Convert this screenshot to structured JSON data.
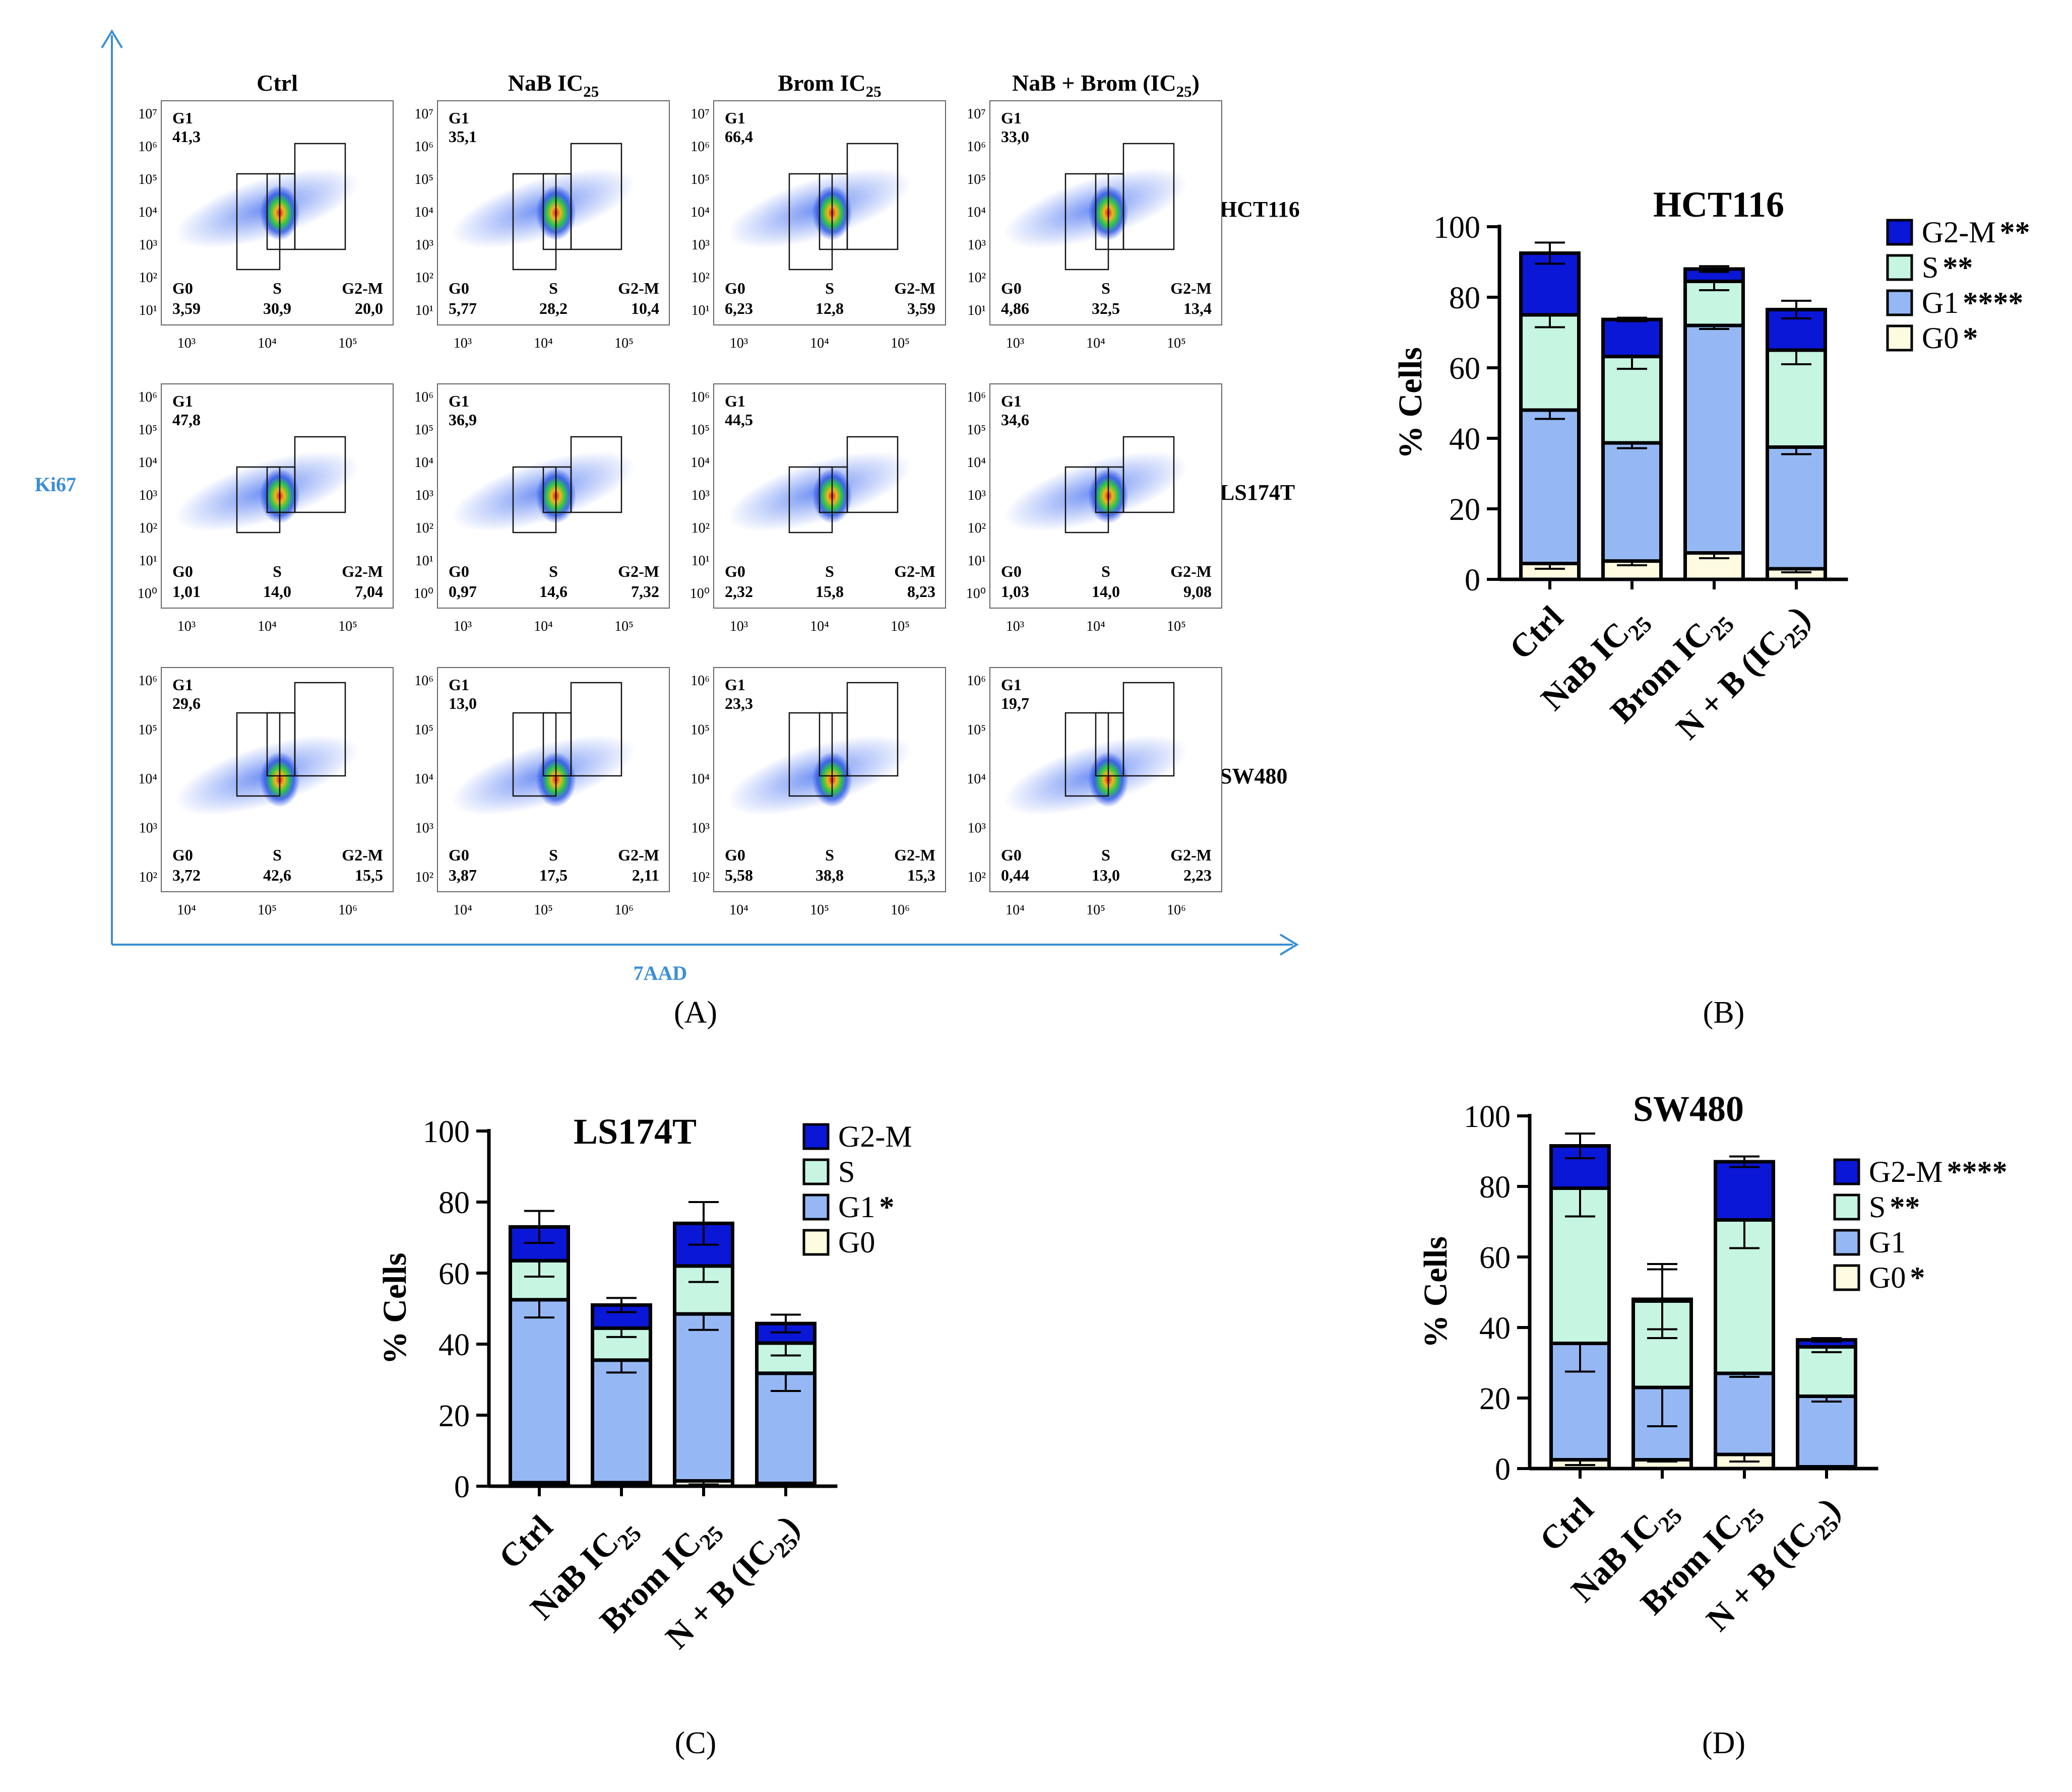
{
  "panel_a": {
    "y_axis_label": "Ki67",
    "x_axis_label": "7AAD",
    "column_headers": [
      {
        "main": "Ctrl",
        "sub": ""
      },
      {
        "main": "NaB IC",
        "sub": "25"
      },
      {
        "main": "Brom IC",
        "sub": "25"
      },
      {
        "main": "NaB + Brom (IC",
        "sub": "25",
        "tail": ")"
      }
    ],
    "gate_names": {
      "g1": "G1",
      "g0": "G0",
      "s": "S",
      "g2m": "G2-M"
    },
    "rows": [
      {
        "cell_line": "HCT116",
        "y_ticks": [
          "10⁷",
          "10⁶",
          "10⁵",
          "10⁴",
          "10³",
          "10²",
          "10¹"
        ],
        "x_ticks": [
          "10³",
          "10⁴",
          "10⁵"
        ],
        "plots": [
          {
            "g1": "41,3",
            "g0": "3,59",
            "s": "30,9",
            "g2m": "20,0"
          },
          {
            "g1": "35,1",
            "g0": "5,77",
            "s": "28,2",
            "g2m": "10,4"
          },
          {
            "g1": "66,4",
            "g0": "6,23",
            "s": "12,8",
            "g2m": "3,59"
          },
          {
            "g1": "33,0",
            "g0": "4,86",
            "s": "32,5",
            "g2m": "13,4"
          }
        ]
      },
      {
        "cell_line": "LS174T",
        "y_ticks": [
          "10⁶",
          "10⁵",
          "10⁴",
          "10³",
          "10²",
          "10¹",
          "10⁰"
        ],
        "x_ticks": [
          "10³",
          "10⁴",
          "10⁵"
        ],
        "plots": [
          {
            "g1": "47,8",
            "g0": "1,01",
            "s": "14,0",
            "g2m": "7,04"
          },
          {
            "g1": "36,9",
            "g0": "0,97",
            "s": "14,6",
            "g2m": "7,32"
          },
          {
            "g1": "44,5",
            "g0": "2,32",
            "s": "15,8",
            "g2m": "8,23"
          },
          {
            "g1": "34,6",
            "g0": "1,03",
            "s": "14,0",
            "g2m": "9,08"
          }
        ]
      },
      {
        "cell_line": "SW480",
        "y_ticks": [
          "10⁶",
          "10⁵",
          "10⁴",
          "10³",
          "10²"
        ],
        "x_ticks": [
          "10⁴",
          "10⁵",
          "10⁶"
        ],
        "plots": [
          {
            "g1": "29,6",
            "g0": "3,72",
            "s": "42,6",
            "g2m": "15,5"
          },
          {
            "g1": "13,0",
            "g0": "3,87",
            "s": "17,5",
            "g2m": "2,11"
          },
          {
            "g1": "23,3",
            "g0": "5,58",
            "s": "38,8",
            "g2m": "15,3"
          },
          {
            "g1": "19,7",
            "g0": "0,44",
            "s": "13,0",
            "g2m": "2,23"
          }
        ]
      }
    ]
  },
  "panel_labels": {
    "a": "(A)",
    "b": "(B)",
    "c": "(C)",
    "d": "(D)"
  },
  "colors": {
    "G2-M": "#0a17d6",
    "S": "#c6f5e1",
    "G1": "#95b8f5",
    "G0": "#fefbe0",
    "axis_blue": "#3a8ed6"
  },
  "chart_data": [
    {
      "type": "bar",
      "stacked": true,
      "title": "HCT116",
      "ylabel": "% Cells",
      "xlabel": "",
      "ylim": [
        0,
        100
      ],
      "yticks": [
        0,
        20,
        40,
        60,
        80,
        100
      ],
      "categories": [
        {
          "main": "Ctrl",
          "sub": "",
          "tail": ""
        },
        {
          "main": "NaB IC",
          "sub": "25",
          "tail": ""
        },
        {
          "main": "Brom IC",
          "sub": "25",
          "tail": ""
        },
        {
          "main": "N + B (IC",
          "sub": "25",
          "tail": ")"
        }
      ],
      "series": [
        {
          "name": "G0",
          "stars": "*",
          "values": [
            4.5,
            5.2,
            7.5,
            3.0
          ],
          "errors": [
            1.5,
            1.2,
            1.5,
            1.0
          ]
        },
        {
          "name": "G1",
          "stars": "****",
          "values": [
            43.5,
            33.5,
            64.5,
            34.5
          ],
          "errors": [
            2.5,
            1.5,
            1.0,
            2.0
          ]
        },
        {
          "name": "S",
          "stars": "**",
          "values": [
            27.0,
            24.5,
            12.5,
            27.5
          ],
          "errors": [
            3.5,
            3.5,
            2.5,
            4.0
          ]
        },
        {
          "name": "G2-M",
          "stars": "**",
          "values": [
            17.5,
            10.5,
            3.5,
            11.5
          ],
          "errors": [
            3.0,
            0.5,
            0.8,
            2.5
          ]
        }
      ],
      "legend": "top-right"
    },
    {
      "type": "bar",
      "stacked": true,
      "title": "LS174T",
      "ylabel": "% Cells",
      "xlabel": "",
      "ylim": [
        0,
        100
      ],
      "yticks": [
        0,
        20,
        40,
        60,
        80,
        100
      ],
      "categories": [
        {
          "main": "Ctrl",
          "sub": "",
          "tail": ""
        },
        {
          "main": "NaB IC",
          "sub": "25",
          "tail": ""
        },
        {
          "main": "Brom IC",
          "sub": "25",
          "tail": ""
        },
        {
          "main": "N + B (IC",
          "sub": "25",
          "tail": ")"
        }
      ],
      "series": [
        {
          "name": "G0",
          "stars": "",
          "values": [
            1.0,
            1.0,
            1.5,
            0.8
          ],
          "errors": [
            0.3,
            0.3,
            1.0,
            0.3
          ]
        },
        {
          "name": "G1",
          "stars": "*",
          "values": [
            51.5,
            34.5,
            47.0,
            31.0
          ],
          "errors": [
            5.0,
            3.5,
            4.5,
            5.0
          ]
        },
        {
          "name": "S",
          "stars": "",
          "values": [
            11.0,
            9.0,
            13.5,
            8.5
          ],
          "errors": [
            4.5,
            2.5,
            4.5,
            3.5
          ]
        },
        {
          "name": "G2-M",
          "stars": "",
          "values": [
            9.5,
            6.5,
            12.0,
            5.5
          ],
          "errors": [
            4.5,
            2.0,
            6.0,
            2.5
          ]
        }
      ],
      "legend": "top-right"
    },
    {
      "type": "bar",
      "stacked": true,
      "title": "SW480",
      "ylabel": "% Cells",
      "xlabel": "",
      "ylim": [
        0,
        100
      ],
      "yticks": [
        0,
        20,
        40,
        60,
        80,
        100
      ],
      "categories": [
        {
          "main": "Ctrl",
          "sub": "",
          "tail": ""
        },
        {
          "main": "NaB IC",
          "sub": "25",
          "tail": ""
        },
        {
          "main": "Brom IC",
          "sub": "25",
          "tail": ""
        },
        {
          "main": "N + B (IC",
          "sub": "25",
          "tail": ")"
        }
      ],
      "series": [
        {
          "name": "G0",
          "stars": "*",
          "values": [
            2.5,
            2.5,
            4.0,
            0.5
          ],
          "errors": [
            1.5,
            0.5,
            2.0,
            0.3
          ]
        },
        {
          "name": "G1",
          "stars": "",
          "values": [
            33.0,
            20.5,
            23.0,
            20.0
          ],
          "errors": [
            8.0,
            11.0,
            1.0,
            1.5
          ]
        },
        {
          "name": "S",
          "stars": "**",
          "values": [
            44.0,
            24.5,
            43.5,
            14.0
          ],
          "errors": [
            8.0,
            10.5,
            8.0,
            1.5
          ]
        },
        {
          "name": "G2-M",
          "stars": "****",
          "values": [
            12.0,
            0.5,
            16.5,
            2.0
          ],
          "errors": [
            3.5,
            8.5,
            1.5,
            0.5
          ]
        }
      ],
      "legend": "top-right"
    }
  ]
}
